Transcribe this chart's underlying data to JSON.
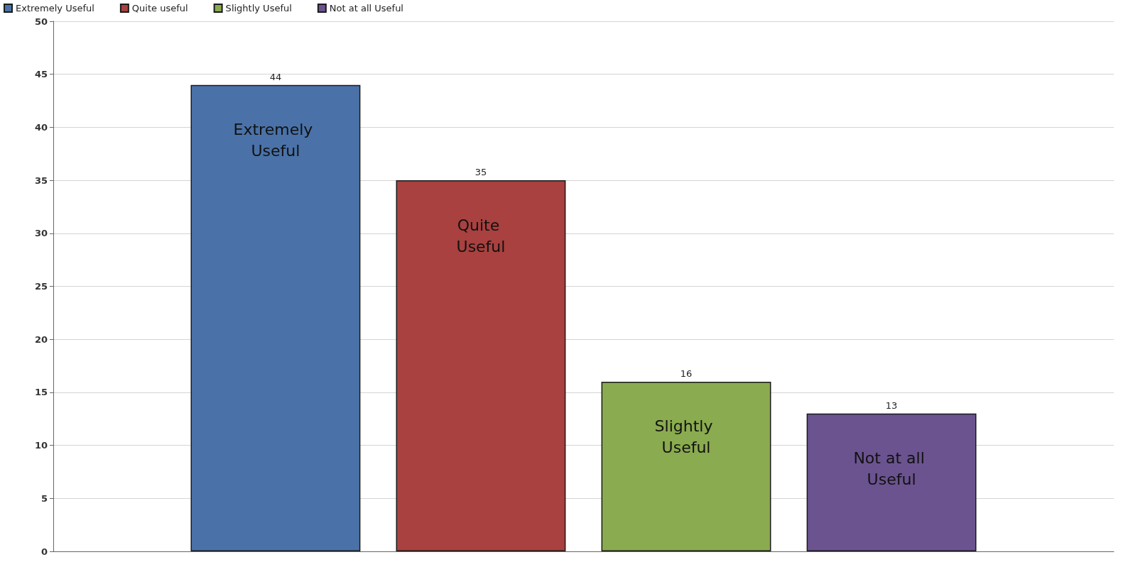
{
  "chart_data": {
    "type": "bar",
    "categories": [
      null
    ],
    "series": [
      {
        "name": "Extremely Useful",
        "color": "#4a72a8",
        "values": [
          44
        ]
      },
      {
        "name": "Quite useful",
        "color": "#a8413f",
        "values": [
          35
        ]
      },
      {
        "name": "Slightly Useful",
        "color": "#8aab4f",
        "values": [
          16
        ]
      },
      {
        "name": "Not at all Useful",
        "color": "#6b5390",
        "values": [
          13
        ]
      }
    ],
    "annotations": [
      "Extremely Useful",
      "Quite Useful",
      "Slightly Useful",
      "Not at all Useful"
    ],
    "ylim": [
      0,
      50
    ],
    "yticks": [
      0,
      5,
      10,
      15,
      20,
      25,
      30,
      35,
      40,
      45,
      50
    ],
    "grid": "y",
    "legend": "top left",
    "data_labels": true
  }
}
